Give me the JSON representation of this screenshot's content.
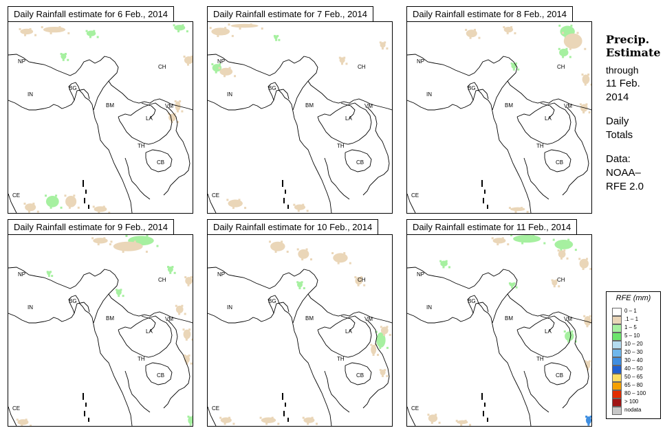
{
  "panels": [
    {
      "title": "Daily Rainfall estimate for  6 Feb., 2014",
      "patches": [
        [
          "g",
          0.45,
          0.06,
          0.05,
          0.03
        ],
        [
          "g",
          0.93,
          0.03,
          0.06,
          0.03
        ],
        [
          "t",
          0.25,
          0.04,
          0.12,
          0.03
        ],
        [
          "t",
          0.1,
          0.05,
          0.07,
          0.03
        ],
        [
          "g",
          0.3,
          0.18,
          0.03,
          0.03
        ],
        [
          "t",
          0.98,
          0.2,
          0.05,
          0.04
        ],
        [
          "t",
          0.89,
          0.5,
          0.04,
          0.04
        ],
        [
          "g",
          0.24,
          0.94,
          0.07,
          0.06
        ],
        [
          "t",
          0.34,
          0.94,
          0.06,
          0.06
        ],
        [
          "t",
          0.12,
          0.97,
          0.06,
          0.04
        ],
        [
          "t",
          0.5,
          0.98,
          0.07,
          0.03
        ],
        [
          "t",
          0.92,
          0.44,
          0.03,
          0.05
        ]
      ]
    },
    {
      "title": "Daily Rainfall estimate for  7 Feb., 2014",
      "patches": [
        [
          "t",
          0.07,
          0.05,
          0.1,
          0.04
        ],
        [
          "t",
          0.2,
          0.02,
          0.15,
          0.02
        ],
        [
          "g",
          0.05,
          0.24,
          0.05,
          0.04
        ],
        [
          "t",
          0.1,
          0.26,
          0.07,
          0.04
        ],
        [
          "t",
          0.73,
          0.2,
          0.03,
          0.03
        ],
        [
          "t",
          0.95,
          0.12,
          0.03,
          0.03
        ],
        [
          "t",
          0.5,
          0.97,
          0.06,
          0.03
        ],
        [
          "t",
          0.15,
          0.95,
          0.08,
          0.04
        ],
        [
          "g",
          0.37,
          0.08,
          0.02,
          0.02
        ]
      ]
    },
    {
      "title": "Daily Rainfall estimate for  8 Feb., 2014",
      "patches": [
        [
          "g",
          0.87,
          0.05,
          0.08,
          0.06
        ],
        [
          "t",
          0.9,
          0.1,
          0.1,
          0.08
        ],
        [
          "g",
          0.85,
          0.16,
          0.05,
          0.04
        ],
        [
          "t",
          0.97,
          0.3,
          0.04,
          0.05
        ],
        [
          "t",
          0.35,
          0.06,
          0.06,
          0.04
        ],
        [
          "t",
          0.55,
          0.04,
          0.05,
          0.03
        ],
        [
          "g",
          0.58,
          0.23,
          0.03,
          0.03
        ],
        [
          "t",
          0.96,
          0.45,
          0.04,
          0.04
        ],
        [
          "t",
          0.6,
          0.98,
          0.08,
          0.02
        ]
      ]
    },
    {
      "title": "Daily Rainfall estimate for  9 Feb., 2014",
      "patches": [
        [
          "g",
          0.72,
          0.03,
          0.14,
          0.05
        ],
        [
          "t",
          0.65,
          0.06,
          0.16,
          0.05
        ],
        [
          "t",
          0.5,
          0.03,
          0.08,
          0.03
        ],
        [
          "g",
          0.88,
          0.18,
          0.03,
          0.03
        ],
        [
          "g",
          0.6,
          0.3,
          0.03,
          0.03
        ],
        [
          "t",
          0.98,
          0.24,
          0.04,
          0.04
        ],
        [
          "t",
          0.93,
          0.39,
          0.04,
          0.04
        ],
        [
          "t",
          0.97,
          0.52,
          0.04,
          0.05
        ],
        [
          "t",
          0.97,
          0.65,
          0.03,
          0.04
        ],
        [
          "g",
          0.99,
          0.97,
          0.03,
          0.04
        ],
        [
          "t",
          0.08,
          0.98,
          0.06,
          0.03
        ],
        [
          "g",
          0.22,
          0.2,
          0.02,
          0.02
        ]
      ]
    },
    {
      "title": "Daily Rainfall estimate for  10 Feb., 2014",
      "patches": [
        [
          "t",
          0.38,
          0.06,
          0.08,
          0.05
        ],
        [
          "t",
          0.52,
          0.1,
          0.06,
          0.05
        ],
        [
          "t",
          0.72,
          0.12,
          0.08,
          0.05
        ],
        [
          "t",
          0.82,
          0.24,
          0.04,
          0.04
        ],
        [
          "g",
          0.5,
          0.26,
          0.03,
          0.03
        ],
        [
          "g",
          0.94,
          0.55,
          0.05,
          0.08
        ],
        [
          "t",
          0.9,
          0.6,
          0.03,
          0.05
        ],
        [
          "t",
          0.96,
          0.5,
          0.04,
          0.04
        ],
        [
          "t",
          0.33,
          0.97,
          0.08,
          0.03
        ],
        [
          "t",
          0.55,
          0.97,
          0.06,
          0.03
        ],
        [
          "t",
          0.1,
          0.97,
          0.06,
          0.03
        ],
        [
          "t",
          0.95,
          0.72,
          0.03,
          0.03
        ]
      ]
    },
    {
      "title": "Daily Rainfall estimate for  11 Feb., 2014",
      "patches": [
        [
          "g",
          0.65,
          0.02,
          0.15,
          0.04
        ],
        [
          "t",
          0.5,
          0.03,
          0.07,
          0.03
        ],
        [
          "g",
          0.85,
          0.05,
          0.1,
          0.05
        ],
        [
          "t",
          0.84,
          0.1,
          0.04,
          0.04
        ],
        [
          "t",
          0.96,
          0.15,
          0.05,
          0.05
        ],
        [
          "g",
          0.2,
          0.15,
          0.04,
          0.03
        ],
        [
          "t",
          0.8,
          0.25,
          0.03,
          0.03
        ],
        [
          "g",
          0.57,
          0.26,
          0.03,
          0.02
        ],
        [
          "g",
          0.88,
          0.53,
          0.05,
          0.05
        ],
        [
          "t",
          0.98,
          0.45,
          0.04,
          0.05
        ],
        [
          "t",
          0.98,
          0.68,
          0.03,
          0.04
        ],
        [
          "t",
          0.3,
          0.98,
          0.06,
          0.02
        ],
        [
          "t",
          0.14,
          0.96,
          0.05,
          0.04
        ],
        [
          "b",
          0.985,
          0.97,
          0.03,
          0.04
        ]
      ]
    }
  ],
  "map_labels": [
    "NP",
    "CH",
    "IN",
    "BG",
    "BM",
    "VM",
    "LA",
    "TH",
    "CB",
    "CE"
  ],
  "side": {
    "title_line1": "Precip.",
    "title_line2": "Estimate",
    "through": "through",
    "date_line1": "11 Feb.",
    "date_line2": "2014",
    "daily1": "Daily",
    "daily2": "Totals",
    "data1": "Data:",
    "data2": "NOAA–",
    "data3": "RFE 2.0"
  },
  "legend": {
    "title": "RFE (mm)",
    "items": [
      {
        "label": "0 – 1",
        "color": "#ffffff"
      },
      {
        "label": ".1 – 1",
        "color": "#ead6b8"
      },
      {
        "label": "1 – 5",
        "color": "#a6f0a0"
      },
      {
        "label": "5 – 10",
        "color": "#6ce46c"
      },
      {
        "label": "10 – 20",
        "color": "#b4dcf0"
      },
      {
        "label": "20 – 30",
        "color": "#6fb7ec"
      },
      {
        "label": "30 – 40",
        "color": "#3f8ee0"
      },
      {
        "label": "40 – 50",
        "color": "#1f5fd0"
      },
      {
        "label": "50 – 65",
        "color": "#fadc64"
      },
      {
        "label": "65 – 80",
        "color": "#f5a000"
      },
      {
        "label": "80 – 100",
        "color": "#e12d00"
      },
      {
        "label": "> 100",
        "color": "#a01414"
      },
      {
        "label": "nodata",
        "color": "#c8c8c8"
      }
    ]
  },
  "colors": {
    "g": "#a6f0a0",
    "t": "#ead6b8",
    "b": "#3f8ee0"
  }
}
